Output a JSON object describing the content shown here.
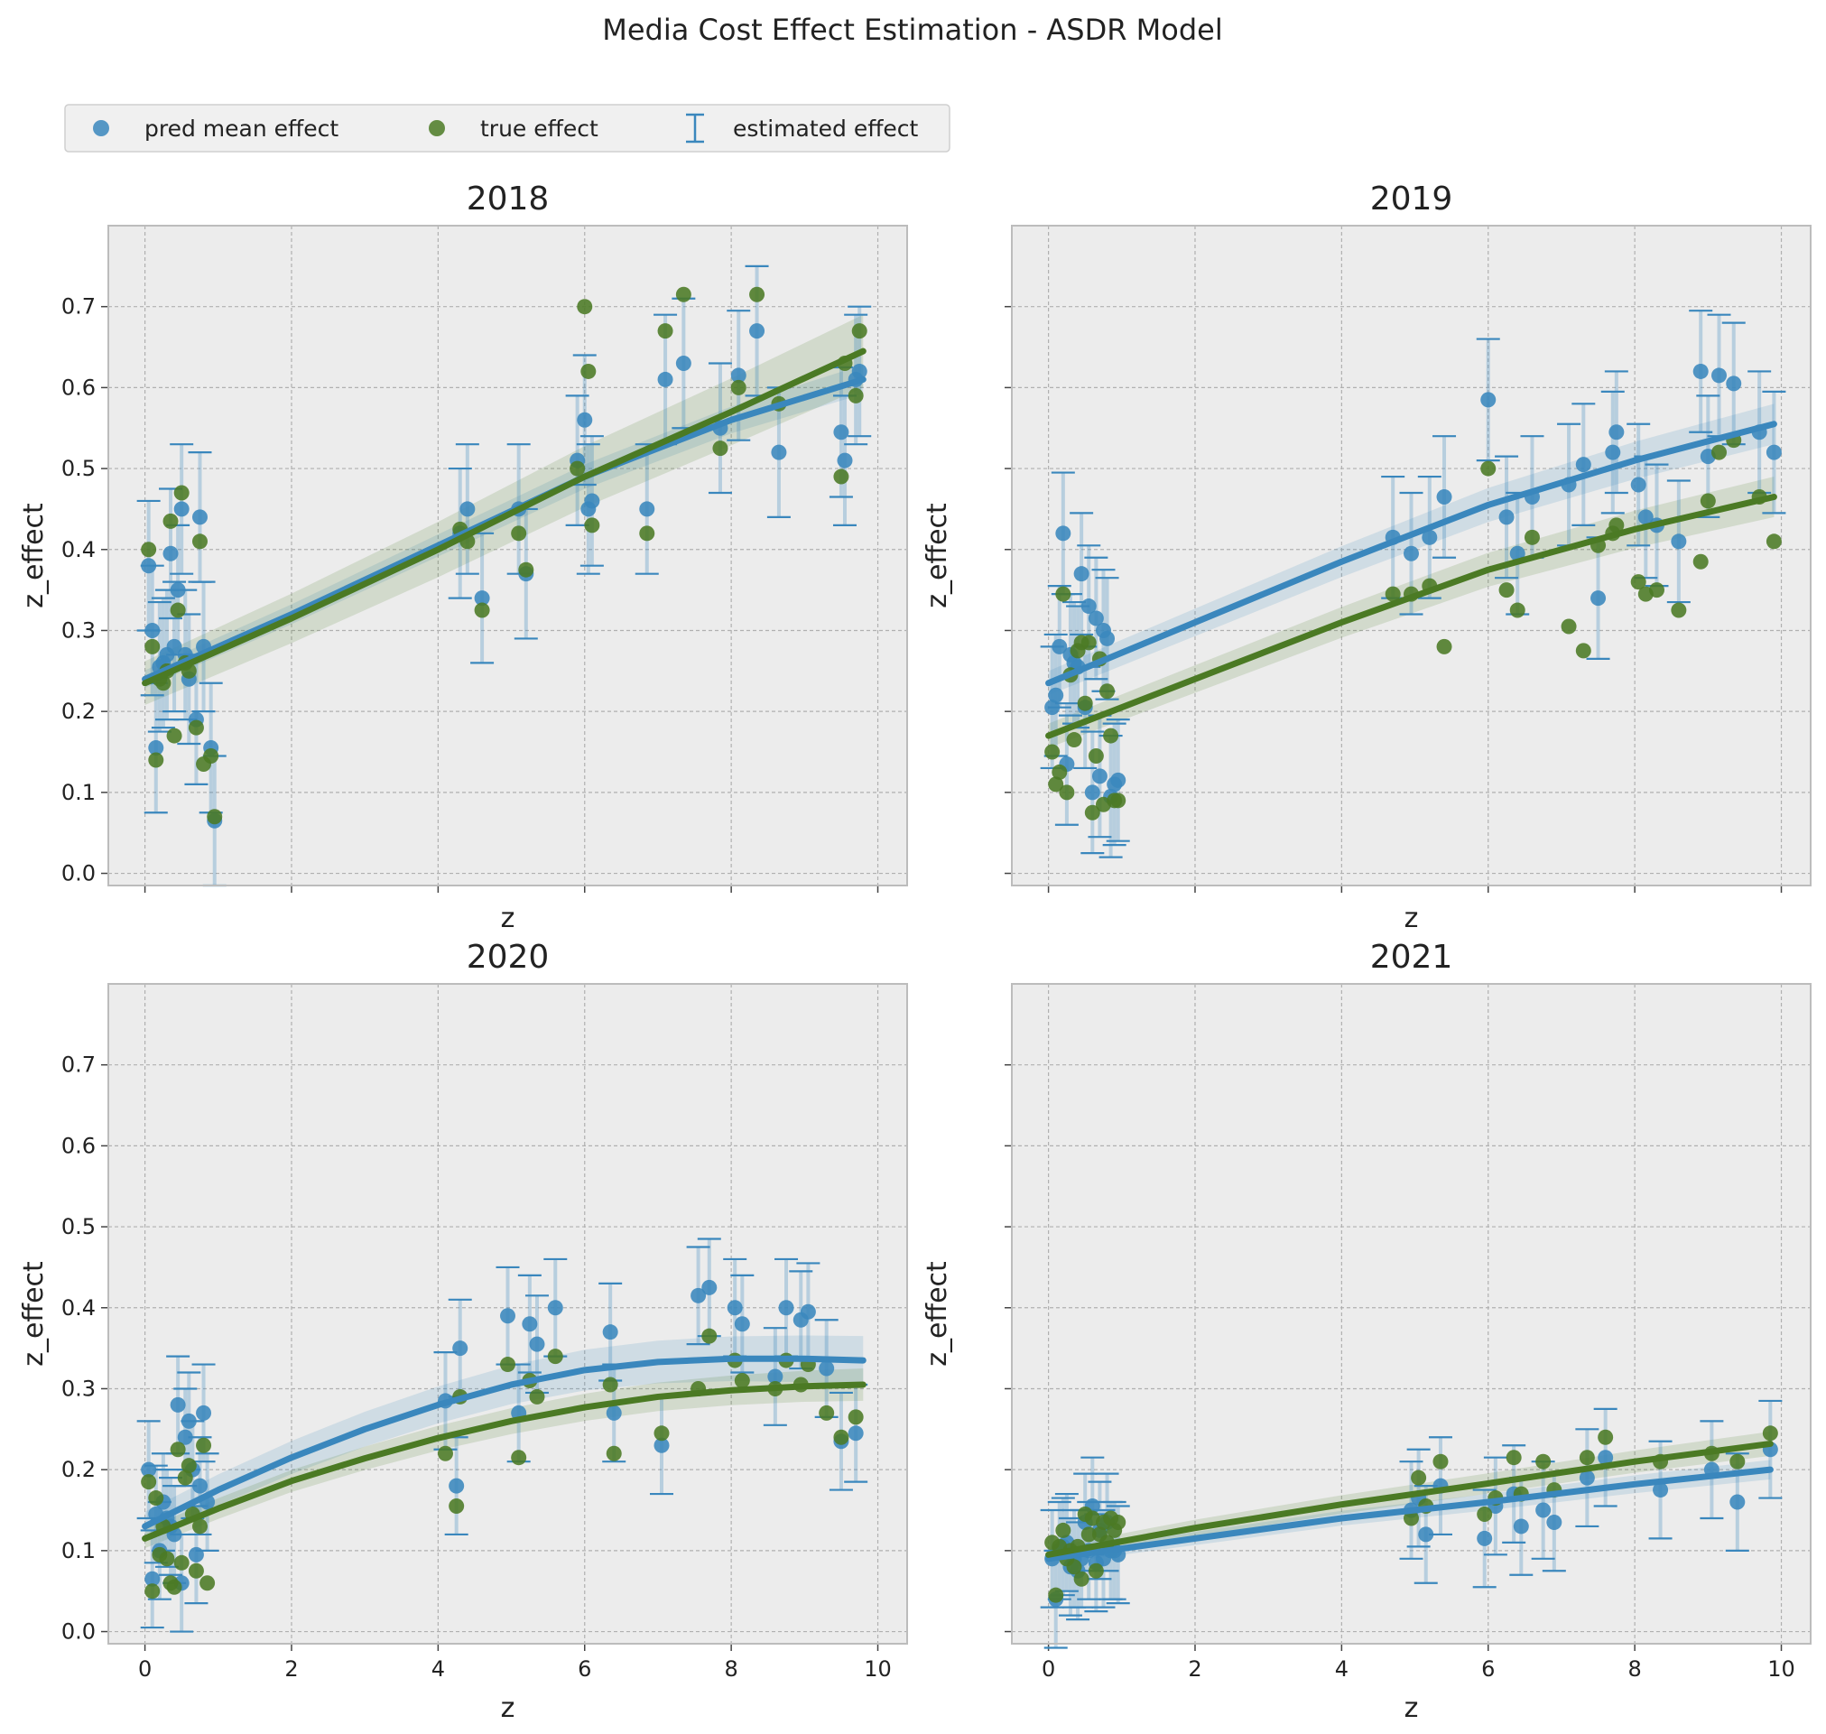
{
  "figure": {
    "suptitle": "Media Cost Effect Estimation - ASDR Model"
  },
  "legend": {
    "placement": "top-left",
    "items": [
      {
        "key": "pred",
        "label": "pred mean effect",
        "marker": "circle"
      },
      {
        "key": "true",
        "label": "true effect",
        "marker": "circle"
      },
      {
        "key": "est",
        "label": "estimated effect",
        "marker": "errorbar"
      }
    ]
  },
  "colors": {
    "pred": "#3a87bd",
    "true": "#4b7a24",
    "errorbar": "#3a87bd",
    "axes_bg": "#ececec",
    "grid": "#b0b0b0",
    "spine": "#bcbcbc"
  },
  "chart_data": [
    {
      "type": "scatter",
      "title": "2018",
      "xlabel": "z",
      "ylabel": "z_effect",
      "xlim": [
        -0.5,
        10.4
      ],
      "ylim": [
        -0.015,
        0.8
      ],
      "xticks": [
        0,
        2,
        4,
        6,
        8,
        10
      ],
      "yticks": [
        0.0,
        0.1,
        0.2,
        0.3,
        0.4,
        0.5,
        0.6,
        0.7
      ],
      "show_xticklabels": false,
      "show_yticklabels": true,
      "grid": true,
      "x": [
        0.05,
        0.1,
        0.15,
        0.2,
        0.25,
        0.3,
        0.35,
        0.4,
        0.45,
        0.5,
        0.55,
        0.6,
        0.7,
        0.75,
        0.8,
        0.9,
        0.95,
        4.3,
        4.4,
        4.6,
        5.1,
        5.2,
        5.9,
        6.0,
        6.05,
        6.1,
        6.85,
        7.1,
        7.35,
        7.85,
        8.1,
        8.35,
        8.65,
        9.5,
        9.55,
        9.7,
        9.75
      ],
      "series": [
        {
          "name": "pred mean effect",
          "key": "pred",
          "values": [
            0.38,
            0.3,
            0.155,
            0.255,
            0.26,
            0.27,
            0.395,
            0.28,
            0.35,
            0.45,
            0.27,
            0.24,
            0.19,
            0.44,
            0.28,
            0.155,
            0.065,
            0.42,
            0.45,
            0.34,
            0.45,
            0.37,
            0.51,
            0.56,
            0.45,
            0.46,
            0.45,
            0.61,
            0.63,
            0.55,
            0.615,
            0.67,
            0.52,
            0.545,
            0.51,
            0.61,
            0.62
          ]
        },
        {
          "name": "true effect",
          "key": "true",
          "values": [
            0.4,
            0.28,
            0.14,
            0.24,
            0.235,
            0.25,
            0.435,
            0.17,
            0.325,
            0.47,
            0.26,
            0.25,
            0.18,
            0.41,
            0.135,
            0.145,
            0.07,
            0.425,
            0.41,
            0.325,
            0.42,
            0.375,
            0.5,
            0.7,
            0.62,
            0.43,
            0.42,
            0.67,
            0.715,
            0.525,
            0.6,
            0.715,
            0.58,
            0.49,
            0.63,
            0.59,
            0.67
          ]
        }
      ],
      "errorbars": {
        "key": "est",
        "half_width": 0.08
      },
      "fits": [
        {
          "key": "pred",
          "x": [
            0,
            2,
            4,
            6,
            8,
            9.8
          ],
          "y": [
            0.24,
            0.32,
            0.405,
            0.49,
            0.56,
            0.61
          ],
          "band": 0.018
        },
        {
          "key": "true",
          "x": [
            0,
            2,
            4,
            6,
            8,
            9.8
          ],
          "y": [
            0.235,
            0.315,
            0.4,
            0.49,
            0.57,
            0.645
          ],
          "band": 0.045
        }
      ]
    },
    {
      "type": "scatter",
      "title": "2019",
      "xlabel": "z",
      "ylabel": "z_effect",
      "xlim": [
        -0.5,
        10.4
      ],
      "ylim": [
        -0.015,
        0.8
      ],
      "xticks": [
        0,
        2,
        4,
        6,
        8,
        10
      ],
      "yticks": [
        0.0,
        0.1,
        0.2,
        0.3,
        0.4,
        0.5,
        0.6,
        0.7
      ],
      "show_xticklabels": false,
      "show_yticklabels": false,
      "grid": true,
      "x": [
        0.05,
        0.1,
        0.15,
        0.2,
        0.25,
        0.3,
        0.35,
        0.4,
        0.45,
        0.5,
        0.55,
        0.6,
        0.65,
        0.7,
        0.75,
        0.8,
        0.85,
        0.9,
        0.95,
        4.7,
        4.95,
        5.2,
        5.4,
        6.0,
        6.25,
        6.4,
        6.6,
        7.1,
        7.3,
        7.5,
        7.7,
        7.75,
        8.05,
        8.15,
        8.3,
        8.6,
        8.9,
        9.0,
        9.15,
        9.35,
        9.7,
        9.9
      ],
      "series": [
        {
          "name": "pred mean effect",
          "key": "pred",
          "values": [
            0.205,
            0.22,
            0.28,
            0.42,
            0.135,
            0.27,
            0.26,
            0.255,
            0.37,
            0.205,
            0.33,
            0.1,
            0.315,
            0.12,
            0.3,
            0.29,
            0.095,
            0.11,
            0.115,
            0.415,
            0.395,
            0.415,
            0.465,
            0.585,
            0.44,
            0.395,
            0.465,
            0.48,
            0.505,
            0.34,
            0.52,
            0.545,
            0.48,
            0.44,
            0.43,
            0.41,
            0.62,
            0.515,
            0.615,
            0.605,
            0.545,
            0.52
          ]
        },
        {
          "name": "true effect",
          "key": "true",
          "values": [
            0.15,
            0.11,
            0.125,
            0.345,
            0.1,
            0.245,
            0.165,
            0.275,
            0.285,
            0.21,
            0.285,
            0.075,
            0.145,
            0.265,
            0.085,
            0.225,
            0.17,
            0.09,
            0.09,
            0.345,
            0.345,
            0.355,
            0.28,
            0.5,
            0.35,
            0.325,
            0.415,
            0.305,
            0.275,
            0.405,
            0.42,
            0.43,
            0.36,
            0.345,
            0.35,
            0.325,
            0.385,
            0.46,
            0.52,
            0.535,
            0.465,
            0.41
          ]
        },
        {
          "name": "",
          "key": "extra",
          "values": []
        }
      ],
      "errorbars": {
        "key": "est",
        "half_width": 0.075
      },
      "fits": [
        {
          "key": "pred",
          "x": [
            0,
            2,
            4,
            6,
            8,
            9.9
          ],
          "y": [
            0.235,
            0.31,
            0.385,
            0.455,
            0.51,
            0.555
          ],
          "band": 0.025
        },
        {
          "key": "true",
          "x": [
            0,
            2,
            4,
            6,
            8,
            9.9
          ],
          "y": [
            0.17,
            0.24,
            0.31,
            0.375,
            0.425,
            0.465
          ],
          "band": 0.025
        }
      ]
    },
    {
      "type": "scatter",
      "title": "2020",
      "xlabel": "z",
      "ylabel": "z_effect",
      "xlim": [
        -0.5,
        10.4
      ],
      "ylim": [
        -0.015,
        0.8
      ],
      "xticks": [
        0,
        2,
        4,
        6,
        8,
        10
      ],
      "yticks": [
        0.0,
        0.1,
        0.2,
        0.3,
        0.4,
        0.5,
        0.6,
        0.7
      ],
      "show_xticklabels": true,
      "show_yticklabels": true,
      "grid": true,
      "x": [
        0.05,
        0.1,
        0.15,
        0.2,
        0.25,
        0.3,
        0.35,
        0.4,
        0.45,
        0.5,
        0.55,
        0.6,
        0.65,
        0.7,
        0.75,
        0.8,
        0.85,
        4.1,
        4.25,
        4.3,
        4.95,
        5.1,
        5.25,
        5.35,
        5.6,
        6.35,
        6.4,
        7.05,
        7.55,
        7.7,
        8.05,
        8.15,
        8.6,
        8.75,
        8.95,
        9.05,
        9.3,
        9.5,
        9.7
      ],
      "series": [
        {
          "name": "pred mean effect",
          "key": "pred",
          "values": [
            0.2,
            0.065,
            0.145,
            0.1,
            0.16,
            0.14,
            0.13,
            0.12,
            0.28,
            0.06,
            0.24,
            0.26,
            0.2,
            0.095,
            0.18,
            0.27,
            0.16,
            0.285,
            0.18,
            0.35,
            0.39,
            0.27,
            0.38,
            0.355,
            0.4,
            0.37,
            0.27,
            0.23,
            0.415,
            0.425,
            0.4,
            0.38,
            0.315,
            0.4,
            0.385,
            0.395,
            0.325,
            0.235,
            0.245
          ]
        },
        {
          "name": "true effect",
          "key": "true",
          "values": [
            0.185,
            0.05,
            0.165,
            0.095,
            0.13,
            0.09,
            0.06,
            0.055,
            0.225,
            0.085,
            0.19,
            0.205,
            0.145,
            0.075,
            0.13,
            0.23,
            0.06,
            0.22,
            0.155,
            0.29,
            0.33,
            0.215,
            0.31,
            0.29,
            0.34,
            0.305,
            0.22,
            0.245,
            0.3,
            0.365,
            0.335,
            0.31,
            0.3,
            0.335,
            0.305,
            0.33,
            0.27,
            0.24,
            0.265
          ]
        }
      ],
      "errorbars": {
        "key": "est",
        "half_width": 0.06
      },
      "fits": [
        {
          "key": "pred",
          "x": [
            0,
            1,
            2,
            3,
            4,
            5,
            6,
            7,
            8,
            9,
            9.8
          ],
          "y": [
            0.13,
            0.175,
            0.215,
            0.25,
            0.28,
            0.305,
            0.323,
            0.333,
            0.337,
            0.337,
            0.335
          ],
          "band": 0.03
        },
        {
          "key": "true",
          "x": [
            0,
            1,
            2,
            3,
            4,
            5,
            6,
            7,
            8,
            9,
            9.8
          ],
          "y": [
            0.115,
            0.152,
            0.186,
            0.214,
            0.239,
            0.26,
            0.277,
            0.29,
            0.298,
            0.303,
            0.305
          ],
          "band": 0.02
        }
      ]
    },
    {
      "type": "scatter",
      "title": "2021",
      "xlabel": "z",
      "ylabel": "z_effect",
      "xlim": [
        -0.5,
        10.4
      ],
      "ylim": [
        -0.015,
        0.8
      ],
      "xticks": [
        0,
        2,
        4,
        6,
        8,
        10
      ],
      "yticks": [
        0.0,
        0.1,
        0.2,
        0.3,
        0.4,
        0.5,
        0.6,
        0.7
      ],
      "show_xticklabels": true,
      "show_yticklabels": false,
      "grid": true,
      "x": [
        0.05,
        0.1,
        0.15,
        0.2,
        0.25,
        0.3,
        0.35,
        0.4,
        0.45,
        0.5,
        0.55,
        0.6,
        0.65,
        0.7,
        0.75,
        0.8,
        0.85,
        0.9,
        0.95,
        4.95,
        5.05,
        5.15,
        5.35,
        5.95,
        6.1,
        6.35,
        6.45,
        6.75,
        6.9,
        7.35,
        7.6,
        8.35,
        9.05,
        9.4,
        9.85
      ],
      "series": [
        {
          "name": "pred mean effect",
          "key": "pred",
          "values": [
            0.09,
            0.04,
            0.1,
            0.105,
            0.11,
            0.08,
            0.09,
            0.075,
            0.09,
            0.135,
            0.1,
            0.155,
            0.085,
            0.125,
            0.09,
            0.135,
            0.1,
            0.1,
            0.095,
            0.15,
            0.165,
            0.12,
            0.18,
            0.115,
            0.155,
            0.17,
            0.13,
            0.15,
            0.135,
            0.19,
            0.215,
            0.175,
            0.2,
            0.16,
            0.225
          ]
        },
        {
          "name": "true effect",
          "key": "true",
          "values": [
            0.11,
            0.045,
            0.105,
            0.125,
            0.09,
            0.1,
            0.08,
            0.105,
            0.065,
            0.145,
            0.12,
            0.14,
            0.075,
            0.12,
            0.135,
            0.11,
            0.14,
            0.125,
            0.135,
            0.14,
            0.19,
            0.155,
            0.21,
            0.145,
            0.165,
            0.215,
            0.17,
            0.21,
            0.175,
            0.215,
            0.24,
            0.21,
            0.22,
            0.21,
            0.245
          ]
        }
      ],
      "errorbars": {
        "key": "est",
        "half_width": 0.06
      },
      "fits": [
        {
          "key": "pred",
          "x": [
            0,
            2,
            4,
            6,
            8,
            9.85
          ],
          "y": [
            0.09,
            0.115,
            0.14,
            0.16,
            0.182,
            0.2
          ],
          "band": 0.012
        },
        {
          "key": "true",
          "x": [
            0,
            2,
            4,
            6,
            8,
            9.85
          ],
          "y": [
            0.095,
            0.128,
            0.157,
            0.183,
            0.21,
            0.232
          ],
          "band": 0.015
        }
      ]
    }
  ]
}
